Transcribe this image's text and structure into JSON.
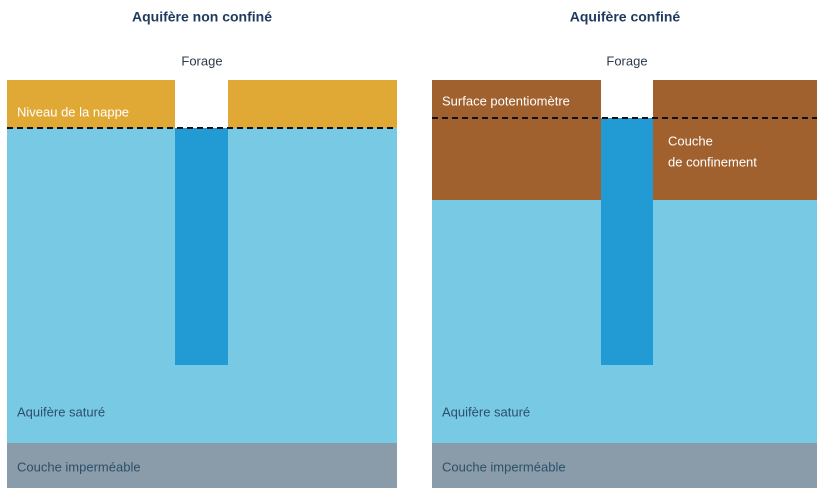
{
  "panels": [
    {
      "title": "Aquifère non confiné",
      "well": "Forage",
      "top_layer": "Niveau de la nappe",
      "aquifer": "Aquifère saturé",
      "bottom_layer": "Couche imperméable"
    },
    {
      "title": "Aquifère confiné",
      "well": "Forage",
      "top_layer": "Surface potentiomètre",
      "confining": [
        "Couche",
        "de confinement"
      ],
      "aquifer": "Aquifère saturé",
      "bottom_layer": "Couche imperméable"
    }
  ]
}
